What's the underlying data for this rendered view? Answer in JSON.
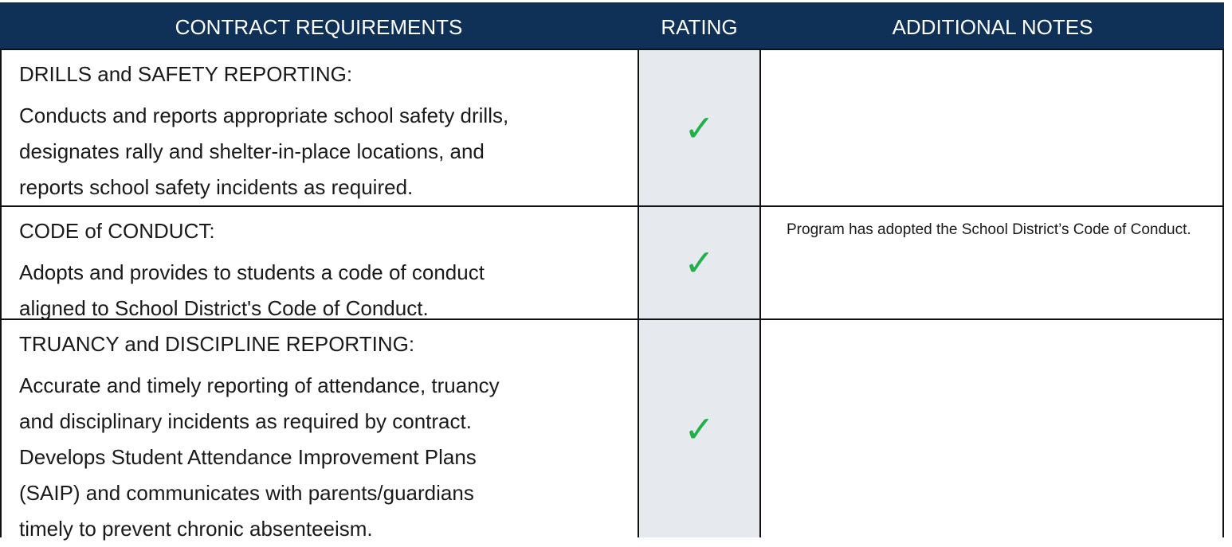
{
  "table": {
    "header": [
      "CONTRACT REQUIREMENTS",
      "RATING",
      "ADDITIONAL NOTES"
    ],
    "rows": [
      {
        "title": "DRILLS and SAFETY REPORTING:",
        "lines": [
          "Conducts and reports appropriate school safety drills,",
          "designates rally and shelter-in-place locations, and",
          "reports school safety incidents as required."
        ],
        "rating": "✓",
        "notes": ""
      },
      {
        "title": "CODE of CONDUCT:",
        "lines": [
          "Adopts and provides to students a code of conduct",
          "aligned to School District's Code of Conduct."
        ],
        "rating": "✓",
        "notes": "Program has adopted the School District’s Code of Conduct."
      },
      {
        "title": "TRUANCY and DISCIPLINE REPORTING:",
        "lines": [
          "Accurate and timely reporting of attendance, truancy",
          "and disciplinary incidents as required by contract.",
          "Develops Student Attendance Improvement Plans",
          "(SAIP) and communicates with parents/guardians",
          "timely to prevent chronic absenteeism."
        ],
        "rating": "✓",
        "notes": ""
      }
    ]
  }
}
